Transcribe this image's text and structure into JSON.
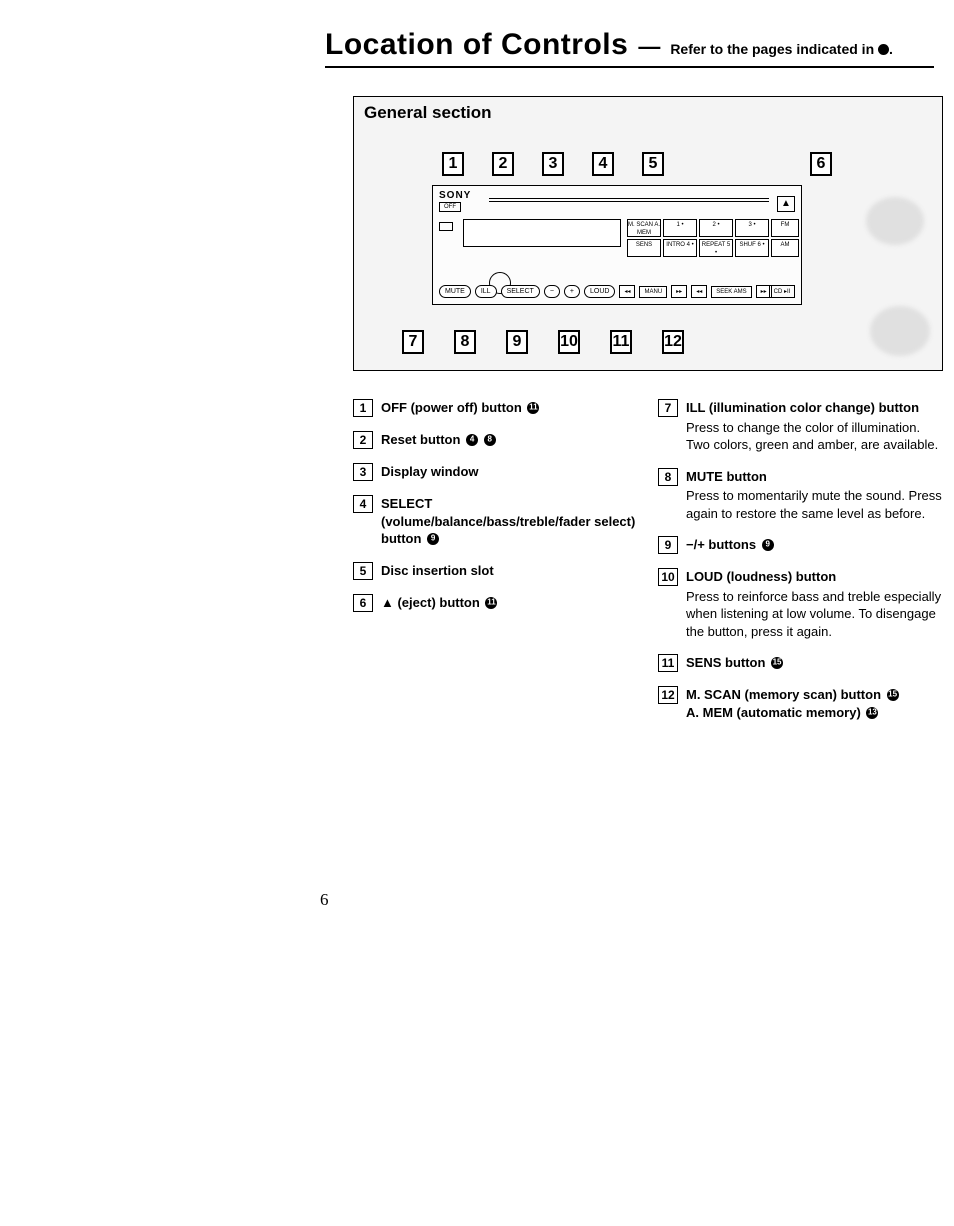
{
  "title": {
    "main": "Location of Controls",
    "dash": "—",
    "sub_prefix": "Refer to the pages indicated in ",
    "sub_suffix": "."
  },
  "diagram": {
    "section_label": "General section",
    "brand": "SONY",
    "off_label": "OFF",
    "eject_symbol": "▲",
    "grid": [
      "M. SCAN\nA. MEM",
      "1 •",
      "2 •",
      "3 •",
      "FM",
      "SENS",
      "INTRO\n4 •",
      "REPEAT\n5 •",
      "SHUF\n6 •",
      "AM"
    ],
    "bottom_buttons": [
      "MUTE",
      "ILL",
      "SELECT",
      "−",
      "+",
      "LOUD",
      "◂◂",
      "MANU",
      "▸▸",
      "◂◂",
      "SEEK\nAMS",
      "▸▸"
    ],
    "cd_label": "CD\n▸II",
    "top_callouts_left": [
      "1",
      "2",
      "3",
      "4",
      "5"
    ],
    "top_callouts_right": [
      "6"
    ],
    "bottom_callouts": [
      "7",
      "8",
      "9",
      "10",
      "11",
      "12"
    ]
  },
  "legend": {
    "left": [
      {
        "num": "1",
        "head": "OFF (power off) button",
        "refs": [
          "11"
        ]
      },
      {
        "num": "2",
        "head": "Reset button",
        "refs": [
          "4",
          "8"
        ]
      },
      {
        "num": "3",
        "head": "Display window",
        "refs": []
      },
      {
        "num": "4",
        "head": "SELECT (volume/balance/bass/treble/fader select) button",
        "refs": [
          "9"
        ]
      },
      {
        "num": "5",
        "head": "Disc insertion slot",
        "refs": []
      },
      {
        "num": "6",
        "head": "▲ (eject) button",
        "refs": [
          "11"
        ]
      }
    ],
    "right": [
      {
        "num": "7",
        "head": "ILL (illumination color change) button",
        "desc": "Press to change the color of illumination. Two colors, green and amber, are available.",
        "refs": []
      },
      {
        "num": "8",
        "head": "MUTE button",
        "desc": "Press to momentarily mute the sound. Press again to restore the same level as before.",
        "refs": []
      },
      {
        "num": "9",
        "head": "−/+ buttons",
        "refs": [
          "9"
        ]
      },
      {
        "num": "10",
        "head": "LOUD (loudness) button",
        "desc": "Press to reinforce bass and treble especially when listening at low volume. To disengage the button, press it again.",
        "refs": []
      },
      {
        "num": "11",
        "head": "SENS button",
        "refs": [
          "15"
        ]
      },
      {
        "num": "12",
        "head": "M. SCAN (memory scan) button",
        "refs": [
          "15"
        ],
        "extra_head": "A. MEM (automatic memory)",
        "extra_refs": [
          "13"
        ]
      }
    ]
  },
  "page_number": "6"
}
